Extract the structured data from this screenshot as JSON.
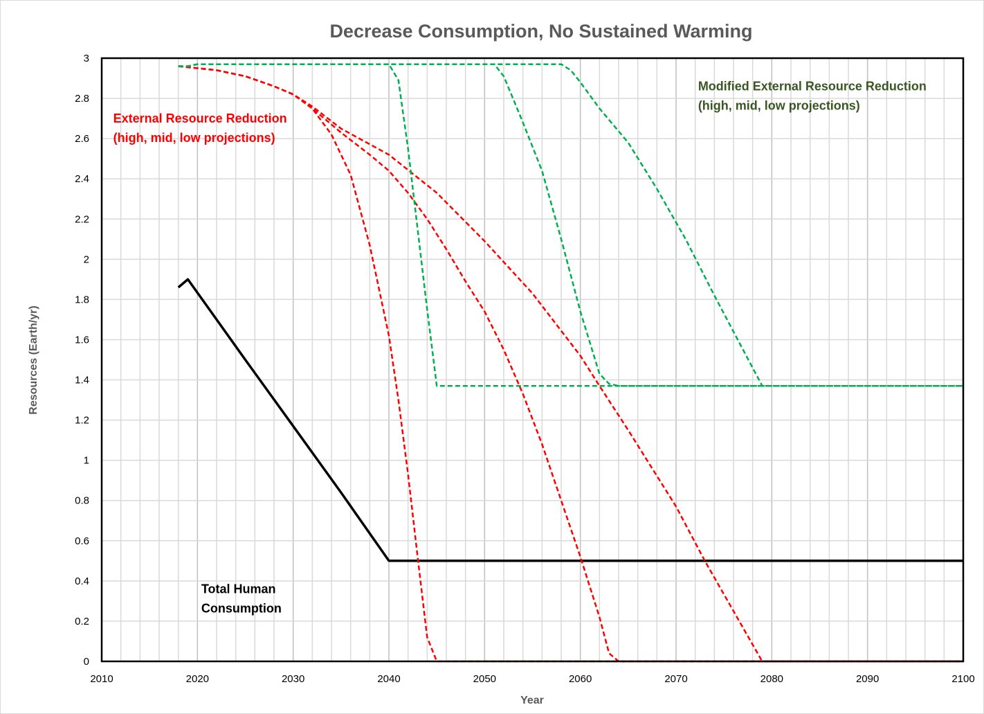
{
  "chart_data": {
    "type": "line",
    "title": "Decrease Consumption, No Sustained Warming",
    "xlabel": "Year",
    "ylabel": "Resources (Earth/yr)",
    "xlim": [
      2010,
      2100
    ],
    "ylim": [
      0,
      3
    ],
    "x_ticks": [
      2010,
      2020,
      2030,
      2040,
      2050,
      2060,
      2070,
      2080,
      2090,
      2100
    ],
    "x_tick_labels": [
      "2010",
      "2020",
      "2030",
      "2040",
      "2050",
      "2060",
      "2070",
      "2080",
      "2090",
      "2100"
    ],
    "x_minor_grid_step": 2,
    "y_ticks": [
      0,
      0.2,
      0.4,
      0.6,
      0.8,
      1,
      1.2,
      1.4,
      1.6,
      1.8,
      2,
      2.2,
      2.4,
      2.6,
      2.8,
      3
    ],
    "y_tick_labels": [
      "0",
      "0.2",
      "0.4",
      "0.6",
      "0.8",
      "1",
      "1.2",
      "1.4",
      "1.6",
      "1.8",
      "2",
      "2.2",
      "2.4",
      "2.6",
      "2.8",
      "3"
    ],
    "grid": true,
    "legend": "none (inline annotations)",
    "colors": {
      "external": "#ff0000",
      "modified": "#00b050",
      "consumption": "#000000",
      "modified_label": "#385723",
      "title": "#595959",
      "grid": "#d9d9d9"
    },
    "series": [
      {
        "name": "Total Human Consumption",
        "style": "solid",
        "color": "#000000",
        "points": [
          [
            2018,
            1.86
          ],
          [
            2019,
            1.9
          ],
          [
            2022,
            1.7
          ],
          [
            2025,
            1.5
          ],
          [
            2030,
            1.17
          ],
          [
            2035,
            0.84
          ],
          [
            2040,
            0.5
          ],
          [
            2100,
            0.5
          ]
        ]
      },
      {
        "name": "External Resource Reduction (high)",
        "style": "dashed",
        "color": "#ff0000",
        "points": [
          [
            2018,
            2.96
          ],
          [
            2020,
            2.95
          ],
          [
            2022,
            2.94
          ],
          [
            2025,
            2.91
          ],
          [
            2028,
            2.86
          ],
          [
            2030,
            2.82
          ],
          [
            2032,
            2.75
          ],
          [
            2034,
            2.62
          ],
          [
            2036,
            2.42
          ],
          [
            2038,
            2.07
          ],
          [
            2040,
            1.62
          ],
          [
            2041,
            1.3
          ],
          [
            2042,
            0.93
          ],
          [
            2043,
            0.52
          ],
          [
            2044,
            0.12
          ],
          [
            2045,
            0.0
          ],
          [
            2100,
            0.0
          ]
        ]
      },
      {
        "name": "External Resource Reduction (mid)",
        "style": "dashed",
        "color": "#ff0000",
        "points": [
          [
            2018,
            2.96
          ],
          [
            2020,
            2.95
          ],
          [
            2022,
            2.94
          ],
          [
            2025,
            2.91
          ],
          [
            2028,
            2.86
          ],
          [
            2030,
            2.82
          ],
          [
            2032,
            2.75
          ],
          [
            2035,
            2.63
          ],
          [
            2038,
            2.52
          ],
          [
            2040,
            2.44
          ],
          [
            2042,
            2.33
          ],
          [
            2044,
            2.2
          ],
          [
            2046,
            2.05
          ],
          [
            2048,
            1.89
          ],
          [
            2050,
            1.74
          ],
          [
            2052,
            1.55
          ],
          [
            2054,
            1.33
          ],
          [
            2056,
            1.08
          ],
          [
            2058,
            0.8
          ],
          [
            2060,
            0.52
          ],
          [
            2062,
            0.22
          ],
          [
            2063,
            0.04
          ],
          [
            2064,
            0.0
          ],
          [
            2100,
            0.0
          ]
        ]
      },
      {
        "name": "External Resource Reduction (low)",
        "style": "dashed",
        "color": "#ff0000",
        "points": [
          [
            2018,
            2.96
          ],
          [
            2020,
            2.95
          ],
          [
            2022,
            2.94
          ],
          [
            2025,
            2.91
          ],
          [
            2028,
            2.86
          ],
          [
            2030,
            2.82
          ],
          [
            2032,
            2.76
          ],
          [
            2035,
            2.65
          ],
          [
            2040,
            2.52
          ],
          [
            2045,
            2.33
          ],
          [
            2050,
            2.09
          ],
          [
            2055,
            1.83
          ],
          [
            2060,
            1.52
          ],
          [
            2062,
            1.37
          ],
          [
            2065,
            1.15
          ],
          [
            2070,
            0.77
          ],
          [
            2073,
            0.5
          ],
          [
            2076,
            0.25
          ],
          [
            2079,
            0.0
          ],
          [
            2100,
            0.0
          ]
        ]
      },
      {
        "name": "Modified External Resource Reduction (high)",
        "style": "dashed",
        "color": "#00b050",
        "points": [
          [
            2018,
            2.96
          ],
          [
            2019,
            2.96
          ],
          [
            2020,
            2.97
          ],
          [
            2040,
            2.97
          ],
          [
            2041,
            2.89
          ],
          [
            2042,
            2.55
          ],
          [
            2043,
            2.15
          ],
          [
            2044,
            1.75
          ],
          [
            2045,
            1.37
          ],
          [
            2100,
            1.37
          ]
        ]
      },
      {
        "name": "Modified External Resource Reduction (mid)",
        "style": "dashed",
        "color": "#00b050",
        "points": [
          [
            2018,
            2.96
          ],
          [
            2019,
            2.96
          ],
          [
            2020,
            2.97
          ],
          [
            2051,
            2.97
          ],
          [
            2052,
            2.91
          ],
          [
            2054,
            2.68
          ],
          [
            2056,
            2.44
          ],
          [
            2058,
            2.1
          ],
          [
            2060,
            1.74
          ],
          [
            2062,
            1.43
          ],
          [
            2063,
            1.38
          ],
          [
            2064,
            1.37
          ],
          [
            2100,
            1.37
          ]
        ]
      },
      {
        "name": "Modified External Resource Reduction (low)",
        "style": "dashed",
        "color": "#00b050",
        "points": [
          [
            2018,
            2.96
          ],
          [
            2019,
            2.96
          ],
          [
            2020,
            2.97
          ],
          [
            2058,
            2.97
          ],
          [
            2059,
            2.94
          ],
          [
            2060,
            2.88
          ],
          [
            2062,
            2.75
          ],
          [
            2065,
            2.58
          ],
          [
            2068,
            2.35
          ],
          [
            2071,
            2.1
          ],
          [
            2074,
            1.82
          ],
          [
            2077,
            1.55
          ],
          [
            2079,
            1.37
          ],
          [
            2100,
            1.37
          ]
        ]
      }
    ],
    "annotations": [
      {
        "lines": [
          "External Resource Reduction",
          "(high, mid, low projections)"
        ],
        "color": "#ff0000",
        "at": [
          2011.2,
          2.68
        ]
      },
      {
        "lines": [
          "Modified External Resource Reduction",
          "(high, mid, low projections)"
        ],
        "color": "#385723",
        "at": [
          2072.3,
          2.84
        ]
      },
      {
        "lines": [
          "Total Human",
          "Consumption"
        ],
        "color": "#000000",
        "at": [
          2020.4,
          0.34
        ]
      }
    ]
  }
}
